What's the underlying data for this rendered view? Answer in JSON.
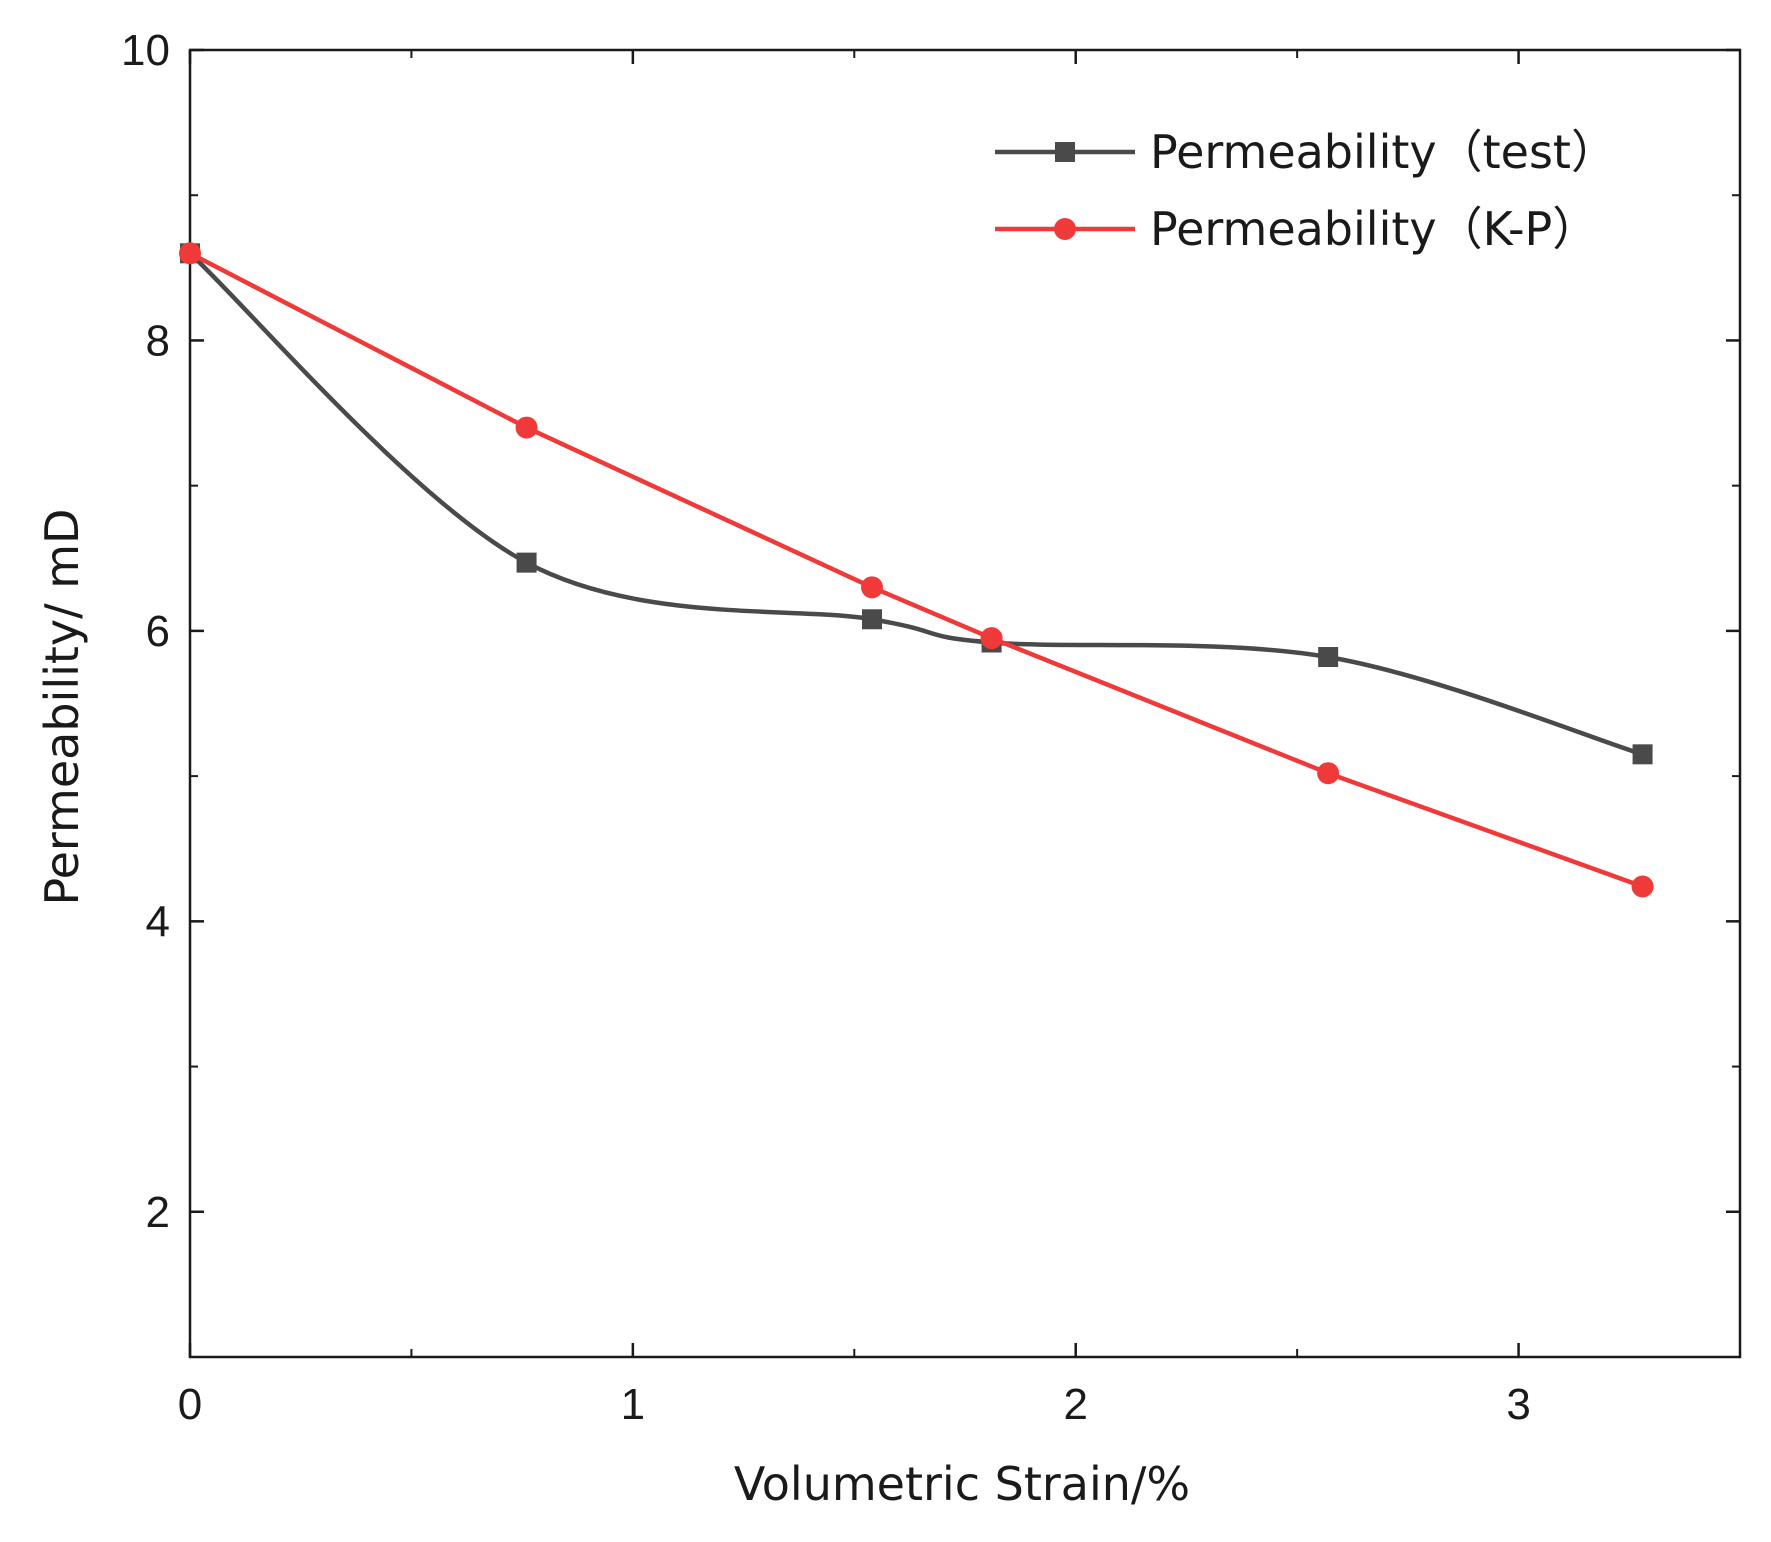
{
  "chart_data": {
    "type": "line",
    "title": "",
    "xlabel": "Volumetric Strain/%",
    "ylabel": "Permeability/ mD",
    "xlim": [
      0,
      3.5
    ],
    "ylim": [
      1,
      10
    ],
    "xticks": [
      {
        "value": 0,
        "label": "0"
      },
      {
        "value": 1,
        "label": "1"
      },
      {
        "value": 2,
        "label": "2"
      },
      {
        "value": 3,
        "label": "3"
      }
    ],
    "yticks": [
      {
        "value": 2,
        "label": "2"
      },
      {
        "value": 4,
        "label": "4"
      },
      {
        "value": 6,
        "label": "6"
      },
      {
        "value": 8,
        "label": "8"
      },
      {
        "value": 10,
        "label": "10"
      }
    ],
    "x_minor_ticks": [
      0.5,
      1.5,
      2.5
    ],
    "y_minor_ticks": [
      3,
      5,
      7,
      9
    ],
    "legend_position": "top-right",
    "series": [
      {
        "name": "Permeability（test）",
        "color": "#4a4a4a",
        "marker": "square",
        "smooth": true,
        "x": [
          0,
          0.76,
          1.54,
          1.81,
          2.57,
          3.28
        ],
        "y": [
          8.6,
          6.47,
          6.08,
          5.92,
          5.82,
          5.15
        ]
      },
      {
        "name": "Permeability（K-P）",
        "color": "#f03a3a",
        "marker": "circle",
        "smooth": false,
        "x": [
          0,
          0.76,
          1.54,
          1.81,
          2.57,
          3.28
        ],
        "y": [
          8.6,
          7.4,
          6.3,
          5.95,
          5.02,
          4.24
        ]
      }
    ]
  }
}
